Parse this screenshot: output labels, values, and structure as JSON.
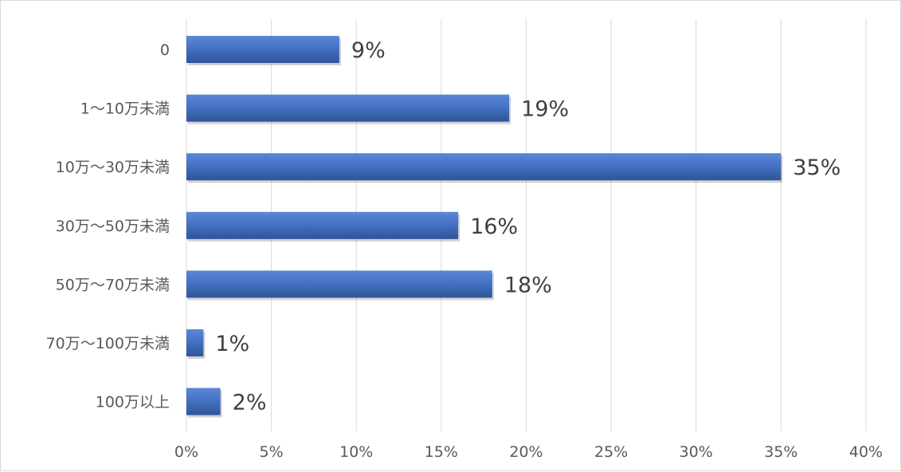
{
  "chart_data": {
    "type": "bar",
    "orientation": "horizontal",
    "categories": [
      "0",
      "1〜10万未満",
      "10万〜30万未満",
      "30万〜50万未満",
      "50万〜70万未満",
      "70万〜100万未満",
      "100万以上"
    ],
    "values": [
      9,
      19,
      35,
      16,
      18,
      1,
      2
    ],
    "data_labels": [
      "9%",
      "19%",
      "35%",
      "16%",
      "18%",
      "1%",
      "2%"
    ],
    "xlim": [
      0,
      40
    ],
    "x_ticks": [
      0,
      5,
      10,
      15,
      20,
      25,
      30,
      35,
      40
    ],
    "x_tick_labels": [
      "0%",
      "5%",
      "10%",
      "15%",
      "20%",
      "25%",
      "30%",
      "35%",
      "40%"
    ],
    "title": "",
    "xlabel": "",
    "ylabel": "",
    "grid": "vertical",
    "legend": "none",
    "colors": {
      "bar": "#4472c4",
      "bar_highlight": "#5b87d6",
      "bar_shadow": "#2f5597",
      "grid": "#d9d9d9",
      "text": "#595959",
      "data_label": "#404040"
    }
  }
}
